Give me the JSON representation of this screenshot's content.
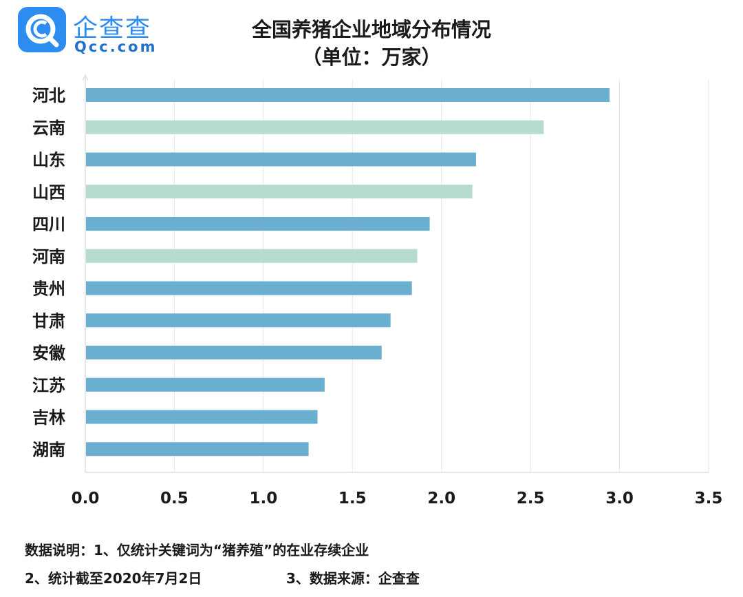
{
  "logo": {
    "name_cn": "企查查",
    "name_en": "Qcc.com",
    "icon": "qcc-magnifier-logo-icon",
    "color": "#2d8cf0"
  },
  "notes": {
    "line1": "数据说明：1、仅统计关键词为“猪养殖”的在业存续企业",
    "line2_left": "2、统计截至2020年7月2日",
    "line2_right": "3、数据来源：企查查"
  },
  "chart_data": {
    "type": "bar",
    "orientation": "horizontal",
    "title": "全国养猪企业地域分布情况",
    "subtitle": "（单位：万家）",
    "categories": [
      "河北",
      "云南",
      "山东",
      "山西",
      "四川",
      "河南",
      "贵州",
      "甘肃",
      "安徽",
      "江苏",
      "吉林",
      "湖南"
    ],
    "values": [
      2.94,
      2.57,
      2.19,
      2.17,
      1.93,
      1.86,
      1.83,
      1.71,
      1.66,
      1.34,
      1.3,
      1.25
    ],
    "bar_colors": [
      "#6aaed0",
      "#b7dccf",
      "#6aaed0",
      "#b7dccf",
      "#6aaed0",
      "#b7dccf",
      "#6aaed0",
      "#6aaed0",
      "#6aaed0",
      "#6aaed0",
      "#6aaed0",
      "#6aaed0"
    ],
    "xlim": [
      0,
      3.5
    ],
    "xticks": [
      "0.0",
      "0.5",
      "1.0",
      "1.5",
      "2.0",
      "2.5",
      "3.0",
      "3.5"
    ],
    "xlabel": "",
    "ylabel": "",
    "grid": "vertical"
  }
}
